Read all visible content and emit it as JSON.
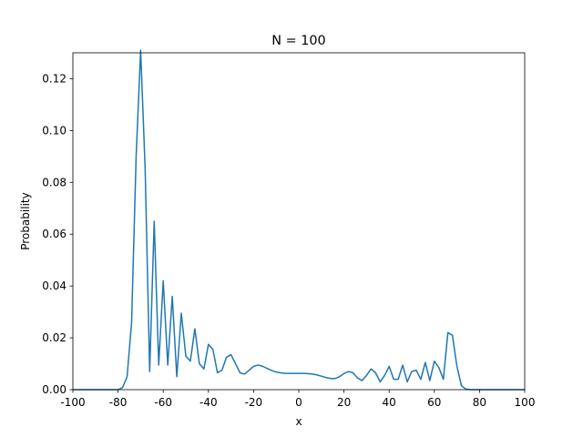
{
  "chart_data": {
    "type": "line",
    "title": "N = 100",
    "xlabel": "x",
    "ylabel": "Probability",
    "xlim": [
      -100,
      100
    ],
    "ylim": [
      0,
      0.13
    ],
    "xticks": [
      -100,
      -80,
      -60,
      -40,
      -20,
      0,
      20,
      40,
      60,
      80,
      100
    ],
    "xtick_labels": [
      "-100",
      "-80",
      "-60",
      "-40",
      "-20",
      "0",
      "20",
      "40",
      "60",
      "80",
      "100"
    ],
    "yticks": [
      0,
      0.02,
      0.04,
      0.06,
      0.08,
      0.1,
      0.12
    ],
    "ytick_labels": [
      "0.00",
      "0.02",
      "0.04",
      "0.06",
      "0.08",
      "0.10",
      "0.12"
    ],
    "grid": false,
    "color": "#1f77b4",
    "series": [
      {
        "x": [
          -100,
          -98,
          -96,
          -94,
          -92,
          -90,
          -88,
          -86,
          -84,
          -82,
          -80,
          -78,
          -76,
          -74,
          -72,
          -70,
          -68,
          -66,
          -64,
          -62,
          -60,
          -58,
          -56,
          -54,
          -52,
          -50,
          -48,
          -46,
          -44,
          -42,
          -40,
          -38,
          -36,
          -34,
          -32,
          -30,
          -28,
          -26,
          -24,
          -22,
          -20,
          -18,
          -16,
          -14,
          -12,
          -10,
          -8,
          -6,
          -4,
          -2,
          0,
          2,
          4,
          6,
          8,
          10,
          12,
          14,
          16,
          18,
          20,
          22,
          24,
          26,
          28,
          30,
          32,
          34,
          36,
          38,
          40,
          42,
          44,
          46,
          48,
          50,
          52,
          54,
          56,
          58,
          60,
          62,
          64,
          66,
          68,
          70,
          72,
          74,
          76,
          78,
          80,
          82,
          84,
          86,
          88,
          90,
          92,
          94,
          96,
          98,
          100
        ],
        "y": [
          0,
          0,
          0,
          0,
          0,
          0,
          0,
          0,
          0,
          0,
          0,
          0.0008,
          0.005,
          0.026,
          0.09,
          0.131,
          0.085,
          0.007,
          0.065,
          0.0095,
          0.042,
          0.0095,
          0.036,
          0.005,
          0.0295,
          0.013,
          0.011,
          0.0235,
          0.01,
          0.008,
          0.0175,
          0.0155,
          0.0065,
          0.0075,
          0.0125,
          0.0135,
          0.01,
          0.0065,
          0.006,
          0.0075,
          0.009,
          0.0095,
          0.009,
          0.0082,
          0.0074,
          0.0068,
          0.0065,
          0.0063,
          0.0063,
          0.0063,
          0.0063,
          0.0063,
          0.0062,
          0.006,
          0.0057,
          0.0052,
          0.0047,
          0.0043,
          0.0043,
          0.005,
          0.0062,
          0.007,
          0.0065,
          0.0045,
          0.0035,
          0.0055,
          0.008,
          0.0065,
          0.003,
          0.0055,
          0.009,
          0.004,
          0.004,
          0.0095,
          0.003,
          0.007,
          0.0075,
          0.004,
          0.0105,
          0.0035,
          0.011,
          0.0085,
          0.004,
          0.022,
          0.021,
          0.009,
          0.0015,
          0.0002,
          0,
          0,
          0,
          0,
          0,
          0,
          0,
          0,
          0,
          0,
          0,
          0,
          0
        ]
      }
    ]
  }
}
